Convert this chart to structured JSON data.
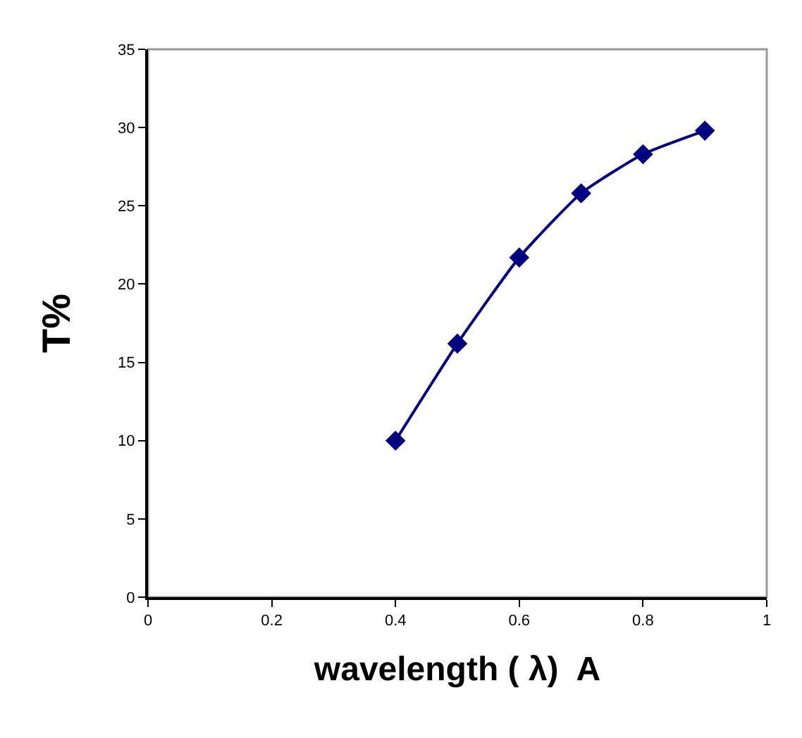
{
  "chart_data": {
    "type": "line",
    "xlabel": "wavelength ( λ)  A",
    "ylabel": "T%",
    "x": [
      0.4,
      0.5,
      0.6,
      0.7,
      0.8,
      0.9
    ],
    "series": [
      {
        "color": "#000080",
        "values": [
          10,
          16.2,
          21.7,
          25.8,
          28.3,
          29.8
        ]
      }
    ],
    "xlim": [
      0,
      1
    ],
    "xticks": [
      0,
      0.2,
      0.4,
      0.6,
      0.8,
      1
    ],
    "ylim": [
      0,
      35
    ],
    "yticks": [
      0,
      5,
      10,
      15,
      20,
      25,
      30,
      35
    ],
    "marker": "diamond",
    "line_style": "solid",
    "grid": false,
    "legend": false
  }
}
